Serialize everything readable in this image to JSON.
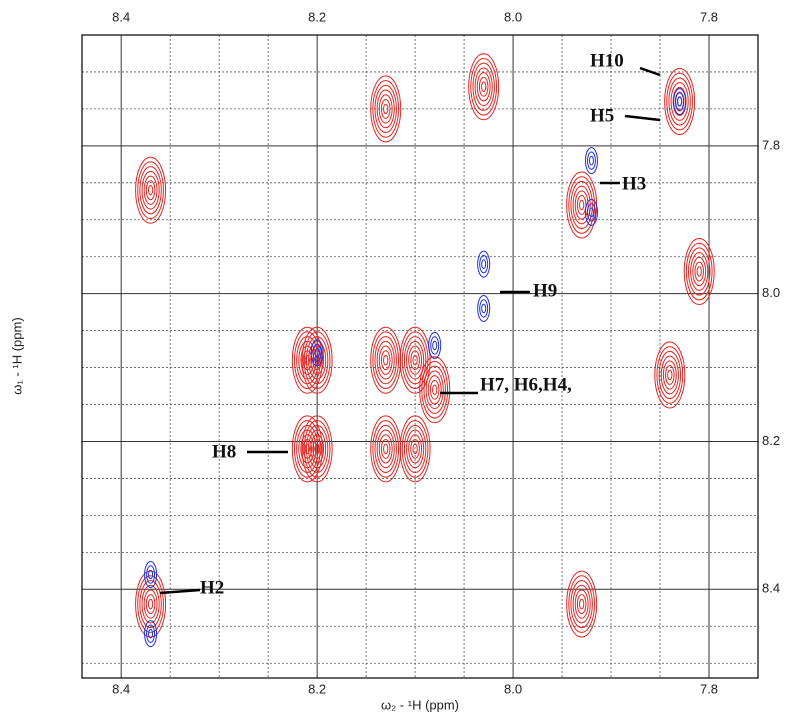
{
  "chart_data": {
    "type": "contour",
    "x_label": "ω₂ - ¹H  (ppm)",
    "y_label": "ω₁ - ¹H  (ppm)",
    "xlim": [
      8.44,
      7.75
    ],
    "ylim": [
      7.65,
      8.52
    ],
    "xticks": [
      8.4,
      8.2,
      {
        "value": 8.0,
        "label": "8.0"
      },
      7.8
    ],
    "yticks": [
      7.8,
      {
        "value": 8.0,
        "label": "8.0"
      },
      8.2,
      8.4
    ],
    "xminor": [
      8.35,
      8.3,
      8.25,
      8.15,
      8.1,
      8.05,
      7.95,
      7.9,
      7.85,
      7.75
    ],
    "yminor": [
      7.7,
      7.75,
      7.85,
      7.9,
      7.95,
      8.05,
      8.1,
      8.15,
      8.25,
      8.3,
      8.35,
      8.45,
      8.5
    ],
    "series": [
      {
        "color": "#e8231f",
        "x": [
          8.37,
          8.13,
          8.03,
          7.83,
          7.81,
          7.84,
          7.93,
          7.93,
          8.21,
          8.2,
          8.21,
          8.2,
          8.13,
          8.1,
          8.13,
          8.1,
          8.08,
          8.37
        ],
        "values": [
          7.86,
          7.75,
          7.72,
          7.74,
          7.97,
          8.11,
          8.42,
          7.88,
          8.09,
          8.09,
          8.21,
          8.21,
          8.09,
          8.09,
          8.21,
          8.21,
          8.13,
          8.42
        ]
      },
      {
        "color": "#1f2ee0",
        "x": [
          8.37,
          8.37,
          8.03,
          8.03,
          7.92,
          7.92,
          7.83,
          8.08,
          8.2
        ],
        "values": [
          8.38,
          8.46,
          7.96,
          8.02,
          7.82,
          7.89,
          7.74,
          8.07,
          8.08
        ]
      }
    ],
    "annotations": [
      "H10",
      "H5",
      "H3",
      "H9",
      "H7, H6,H4,",
      "H8",
      "H2"
    ]
  }
}
